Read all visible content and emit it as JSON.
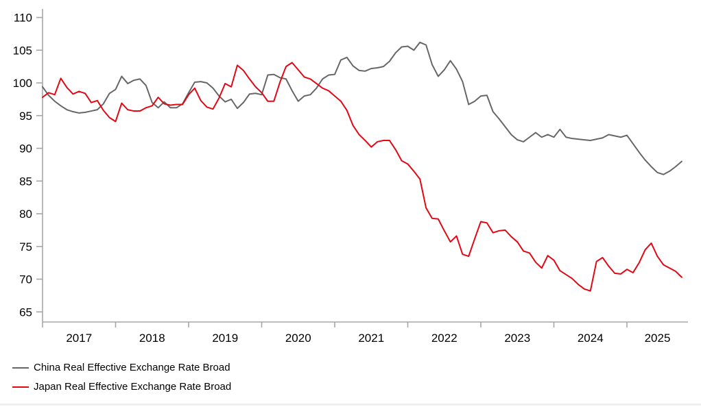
{
  "chart_data": {
    "type": "line",
    "title": "",
    "xlabel": "",
    "ylabel": "",
    "x_unit": "month",
    "x_start": "2017-01",
    "x_end": "2025-10",
    "x_tick_labels": [
      "2017",
      "2018",
      "2019",
      "2020",
      "2021",
      "2022",
      "2023",
      "2024",
      "2025"
    ],
    "y_ticks": [
      110,
      105,
      100,
      95,
      90,
      85,
      80,
      75,
      70,
      65
    ],
    "ylim": [
      65,
      110
    ],
    "grid": false,
    "legend_position": "bottom-left",
    "axis_color": "#a6a6a6",
    "legend": [
      {
        "label": "China Real Effective Exchange Rate Broad",
        "color": "#666666"
      },
      {
        "label": "Japan Real Effective Exchange Rate Broad",
        "color": "#e30613"
      }
    ],
    "series": [
      {
        "key": "china",
        "name": "China Real Effective Exchange Rate Broad",
        "color": "#666666",
        "values": [
          99.4,
          98.1,
          97.2,
          96.5,
          95.9,
          95.6,
          95.4,
          95.5,
          95.7,
          95.9,
          96.8,
          98.4,
          99.0,
          101.0,
          99.9,
          100.4,
          100.6,
          99.6,
          97.0,
          96.2,
          97.1,
          96.2,
          96.2,
          96.8,
          98.5,
          100.1,
          100.2,
          100.0,
          99.2,
          98.0,
          97.1,
          97.5,
          96.1,
          97.0,
          98.3,
          98.4,
          98.2,
          101.2,
          101.3,
          100.8,
          100.6,
          98.8,
          97.2,
          98.0,
          98.2,
          99.2,
          100.6,
          101.2,
          101.3,
          103.5,
          103.9,
          102.6,
          101.9,
          101.8,
          102.2,
          102.3,
          102.5,
          103.3,
          104.6,
          105.5,
          105.6,
          105.0,
          106.2,
          105.8,
          102.8,
          101.0,
          102.0,
          103.4,
          102.1,
          100.2,
          96.7,
          97.2,
          98.0,
          98.1,
          95.6,
          94.5,
          93.3,
          92.1,
          91.3,
          91.0,
          91.7,
          92.4,
          91.7,
          92.1,
          91.7,
          92.9,
          91.7,
          91.5,
          91.4,
          91.3,
          91.2,
          91.4,
          91.6,
          92.1,
          91.9,
          91.7,
          92.0,
          90.7,
          89.4,
          88.2,
          87.2,
          86.3,
          86.0,
          86.5,
          87.2,
          88.0
        ]
      },
      {
        "key": "japan",
        "name": "Japan Real Effective Exchange Rate Broad",
        "color": "#e30613",
        "values": [
          97.8,
          98.5,
          98.2,
          100.7,
          99.3,
          98.3,
          98.7,
          98.4,
          97.0,
          97.3,
          95.8,
          94.7,
          94.1,
          96.9,
          95.9,
          95.7,
          95.7,
          96.2,
          96.5,
          97.8,
          96.8,
          96.6,
          96.7,
          96.7,
          98.2,
          99.2,
          97.3,
          96.3,
          96.0,
          97.7,
          99.9,
          99.4,
          102.7,
          101.9,
          100.6,
          99.4,
          98.5,
          97.2,
          97.2,
          100.1,
          102.5,
          103.1,
          102.0,
          100.9,
          100.6,
          99.9,
          99.2,
          98.8,
          98.0,
          97.2,
          95.8,
          93.5,
          92.1,
          91.2,
          90.2,
          91.0,
          91.2,
          91.2,
          89.8,
          88.1,
          87.6,
          86.5,
          85.3,
          80.9,
          79.3,
          79.2,
          77.4,
          75.7,
          76.6,
          73.8,
          73.5,
          76.2,
          78.8,
          78.6,
          77.1,
          77.4,
          77.5,
          76.5,
          75.7,
          74.3,
          74.0,
          72.6,
          71.7,
          73.6,
          72.9,
          71.3,
          70.7,
          70.1,
          69.2,
          68.5,
          68.2,
          72.7,
          73.3,
          72.0,
          70.9,
          70.8,
          71.5,
          71.0,
          72.5,
          74.5,
          75.5,
          73.5,
          72.2,
          71.7,
          71.2,
          70.3
        ]
      }
    ]
  }
}
